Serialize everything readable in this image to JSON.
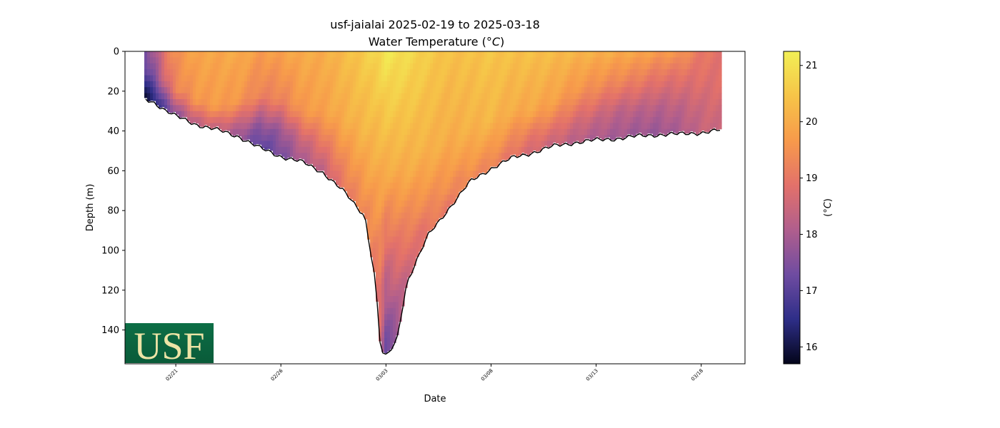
{
  "chart_data": {
    "type": "heatmap",
    "title": "usf-jaialai 2025-02-19 to 2025-03-18",
    "subtitle_prefix": "Water Temperature (",
    "subtitle_unit": "°C",
    "subtitle_suffix": ")",
    "xlabel": "Date",
    "ylabel": "Depth (m)",
    "colorbar_label": "(°C)",
    "colorbar_label_unit": "°C",
    "x_range": [
      "2025-02-18T14:00",
      "2025-03-20T02:00"
    ],
    "ylim": [
      157,
      0
    ],
    "y_inverted": true,
    "color_range": [
      15.7,
      21.25
    ],
    "x_ticks": [
      "2025-02-21",
      "2025-02-26",
      "2025-03-03",
      "2025-03-08",
      "2025-03-13",
      "2025-03-18"
    ],
    "x_tick_labels": [
      "02/21",
      "02/26",
      "03/03",
      "03/08",
      "03/13",
      "03/18"
    ],
    "y_ticks": [
      0,
      20,
      40,
      60,
      80,
      100,
      120,
      140
    ],
    "colorbar_ticks": [
      16,
      17,
      18,
      19,
      20,
      21
    ],
    "colormap": [
      "#03051A",
      "#2E2E88",
      "#6F4CA1",
      "#B05E8D",
      "#E3716A",
      "#F79A4B",
      "#F6C448",
      "#F2EF55"
    ],
    "profiles": [
      {
        "time": "2025-02-19T12:00",
        "max_depth": 23,
        "temps": [
          {
            "depth": 0,
            "temp": 17.3
          },
          {
            "depth": 10,
            "temp": 17.0
          },
          {
            "depth": 18,
            "temp": 16.3
          },
          {
            "depth": 23,
            "temp": 15.9
          }
        ]
      },
      {
        "time": "2025-02-20T00:00",
        "max_depth": 25,
        "temps": [
          {
            "depth": 0,
            "temp": 18.0
          },
          {
            "depth": 12,
            "temp": 17.6
          },
          {
            "depth": 20,
            "temp": 16.8
          },
          {
            "depth": 25,
            "temp": 16.4
          }
        ]
      },
      {
        "time": "2025-02-20T12:00",
        "max_depth": 29,
        "temps": [
          {
            "depth": 0,
            "temp": 19.0
          },
          {
            "depth": 15,
            "temp": 18.6
          },
          {
            "depth": 24,
            "temp": 17.5
          },
          {
            "depth": 29,
            "temp": 17.0
          }
        ]
      },
      {
        "time": "2025-02-21T00:00",
        "max_depth": 32,
        "temps": [
          {
            "depth": 0,
            "temp": 19.5
          },
          {
            "depth": 20,
            "temp": 19.2
          },
          {
            "depth": 28,
            "temp": 18.0
          },
          {
            "depth": 32,
            "temp": 17.6
          }
        ]
      },
      {
        "time": "2025-02-22T00:00",
        "max_depth": 36,
        "temps": [
          {
            "depth": 0,
            "temp": 19.9
          },
          {
            "depth": 25,
            "temp": 19.6
          },
          {
            "depth": 33,
            "temp": 18.6
          },
          {
            "depth": 36,
            "temp": 18.3
          }
        ]
      },
      {
        "time": "2025-02-23T00:00",
        "max_depth": 39,
        "temps": [
          {
            "depth": 0,
            "temp": 19.9
          },
          {
            "depth": 28,
            "temp": 19.7
          },
          {
            "depth": 36,
            "temp": 18.7
          },
          {
            "depth": 39,
            "temp": 18.4
          }
        ]
      },
      {
        "time": "2025-02-24T00:00",
        "max_depth": 42,
        "temps": [
          {
            "depth": 0,
            "temp": 20.0
          },
          {
            "depth": 25,
            "temp": 19.6
          },
          {
            "depth": 38,
            "temp": 18.2
          },
          {
            "depth": 42,
            "temp": 17.8
          }
        ]
      },
      {
        "time": "2025-02-25T00:00",
        "max_depth": 48,
        "temps": [
          {
            "depth": 0,
            "temp": 19.7
          },
          {
            "depth": 22,
            "temp": 19.2
          },
          {
            "depth": 38,
            "temp": 17.6
          },
          {
            "depth": 48,
            "temp": 17.0
          }
        ]
      },
      {
        "time": "2025-02-26T00:00",
        "max_depth": 52,
        "temps": [
          {
            "depth": 0,
            "temp": 19.8
          },
          {
            "depth": 25,
            "temp": 19.2
          },
          {
            "depth": 40,
            "temp": 17.8
          },
          {
            "depth": 52,
            "temp": 17.4
          }
        ]
      },
      {
        "time": "2025-02-27T00:00",
        "max_depth": 55,
        "temps": [
          {
            "depth": 0,
            "temp": 20.0
          },
          {
            "depth": 30,
            "temp": 19.6
          },
          {
            "depth": 45,
            "temp": 18.4
          },
          {
            "depth": 55,
            "temp": 18.0
          }
        ]
      },
      {
        "time": "2025-02-28T00:00",
        "max_depth": 60,
        "temps": [
          {
            "depth": 0,
            "temp": 20.0
          },
          {
            "depth": 30,
            "temp": 19.8
          },
          {
            "depth": 50,
            "temp": 18.8
          },
          {
            "depth": 60,
            "temp": 18.3
          }
        ]
      },
      {
        "time": "2025-03-01T00:00",
        "max_depth": 70,
        "temps": [
          {
            "depth": 0,
            "temp": 20.3
          },
          {
            "depth": 35,
            "temp": 20.0
          },
          {
            "depth": 55,
            "temp": 19.4
          },
          {
            "depth": 70,
            "temp": 19.0
          }
        ]
      },
      {
        "time": "2025-03-02T00:00",
        "max_depth": 82,
        "temps": [
          {
            "depth": 0,
            "temp": 20.6
          },
          {
            "depth": 40,
            "temp": 20.2
          },
          {
            "depth": 65,
            "temp": 19.7
          },
          {
            "depth": 82,
            "temp": 19.3
          }
        ]
      },
      {
        "time": "2025-03-02T12:00",
        "max_depth": 115,
        "temps": [
          {
            "depth": 0,
            "temp": 20.8
          },
          {
            "depth": 50,
            "temp": 20.1
          },
          {
            "depth": 90,
            "temp": 19.4
          },
          {
            "depth": 115,
            "temp": 18.8
          }
        ]
      },
      {
        "time": "2025-03-02T18:00",
        "max_depth": 150,
        "temps": [
          {
            "depth": 0,
            "temp": 20.9
          },
          {
            "depth": 60,
            "temp": 20.0
          },
          {
            "depth": 110,
            "temp": 19.1
          },
          {
            "depth": 150,
            "temp": 18.5
          }
        ]
      },
      {
        "time": "2025-03-03T00:00",
        "max_depth": 153,
        "temps": [
          {
            "depth": 0,
            "temp": 21.1
          },
          {
            "depth": 60,
            "temp": 20.0
          },
          {
            "depth": 110,
            "temp": 18.4
          },
          {
            "depth": 153,
            "temp": 17.1
          }
        ]
      },
      {
        "time": "2025-03-03T12:00",
        "max_depth": 145,
        "temps": [
          {
            "depth": 0,
            "temp": 21.0
          },
          {
            "depth": 60,
            "temp": 20.0
          },
          {
            "depth": 110,
            "temp": 18.6
          },
          {
            "depth": 145,
            "temp": 17.6
          }
        ]
      },
      {
        "time": "2025-03-04T00:00",
        "max_depth": 115,
        "temps": [
          {
            "depth": 0,
            "temp": 20.9
          },
          {
            "depth": 60,
            "temp": 20.0
          },
          {
            "depth": 95,
            "temp": 19.0
          },
          {
            "depth": 115,
            "temp": 18.4
          }
        ]
      },
      {
        "time": "2025-03-05T00:00",
        "max_depth": 92,
        "temps": [
          {
            "depth": 0,
            "temp": 20.6
          },
          {
            "depth": 50,
            "temp": 20.1
          },
          {
            "depth": 80,
            "temp": 19.3
          },
          {
            "depth": 92,
            "temp": 18.8
          }
        ]
      },
      {
        "time": "2025-03-06T00:00",
        "max_depth": 78,
        "temps": [
          {
            "depth": 0,
            "temp": 20.4
          },
          {
            "depth": 45,
            "temp": 20.0
          },
          {
            "depth": 70,
            "temp": 19.4
          },
          {
            "depth": 78,
            "temp": 19.0
          }
        ]
      },
      {
        "time": "2025-03-07T00:00",
        "max_depth": 65,
        "temps": [
          {
            "depth": 0,
            "temp": 20.4
          },
          {
            "depth": 40,
            "temp": 20.1
          },
          {
            "depth": 58,
            "temp": 19.6
          },
          {
            "depth": 65,
            "temp": 19.2
          }
        ]
      },
      {
        "time": "2025-03-08T00:00",
        "max_depth": 58,
        "temps": [
          {
            "depth": 0,
            "temp": 20.5
          },
          {
            "depth": 35,
            "temp": 20.2
          },
          {
            "depth": 50,
            "temp": 19.6
          },
          {
            "depth": 58,
            "temp": 19.2
          }
        ]
      },
      {
        "time": "2025-03-09T00:00",
        "max_depth": 53,
        "temps": [
          {
            "depth": 0,
            "temp": 20.4
          },
          {
            "depth": 30,
            "temp": 20.0
          },
          {
            "depth": 45,
            "temp": 19.3
          },
          {
            "depth": 53,
            "temp": 18.9
          }
        ]
      },
      {
        "time": "2025-03-10T00:00",
        "max_depth": 50,
        "temps": [
          {
            "depth": 0,
            "temp": 20.4
          },
          {
            "depth": 30,
            "temp": 19.9
          },
          {
            "depth": 42,
            "temp": 19.0
          },
          {
            "depth": 50,
            "temp": 18.6
          }
        ]
      },
      {
        "time": "2025-03-11T00:00",
        "max_depth": 47,
        "temps": [
          {
            "depth": 0,
            "temp": 20.3
          },
          {
            "depth": 25,
            "temp": 19.8
          },
          {
            "depth": 40,
            "temp": 18.8
          },
          {
            "depth": 47,
            "temp": 18.4
          }
        ]
      },
      {
        "time": "2025-03-12T00:00",
        "max_depth": 45,
        "temps": [
          {
            "depth": 0,
            "temp": 20.2
          },
          {
            "depth": 20,
            "temp": 19.6
          },
          {
            "depth": 36,
            "temp": 18.6
          },
          {
            "depth": 45,
            "temp": 18.2
          }
        ]
      },
      {
        "time": "2025-03-13T00:00",
        "max_depth": 44,
        "temps": [
          {
            "depth": 0,
            "temp": 20.1
          },
          {
            "depth": 18,
            "temp": 19.4
          },
          {
            "depth": 34,
            "temp": 18.4
          },
          {
            "depth": 44,
            "temp": 18.0
          }
        ]
      },
      {
        "time": "2025-03-14T00:00",
        "max_depth": 43,
        "temps": [
          {
            "depth": 0,
            "temp": 20.0
          },
          {
            "depth": 15,
            "temp": 19.3
          },
          {
            "depth": 30,
            "temp": 18.3
          },
          {
            "depth": 43,
            "temp": 17.9
          }
        ]
      },
      {
        "time": "2025-03-15T00:00",
        "max_depth": 42,
        "temps": [
          {
            "depth": 0,
            "temp": 19.9
          },
          {
            "depth": 15,
            "temp": 19.1
          },
          {
            "depth": 30,
            "temp": 18.2
          },
          {
            "depth": 42,
            "temp": 17.8
          }
        ]
      },
      {
        "time": "2025-03-16T00:00",
        "max_depth": 41,
        "temps": [
          {
            "depth": 0,
            "temp": 19.7
          },
          {
            "depth": 12,
            "temp": 19.0
          },
          {
            "depth": 28,
            "temp": 18.2
          },
          {
            "depth": 41,
            "temp": 17.8
          }
        ]
      },
      {
        "time": "2025-03-17T00:00",
        "max_depth": 41,
        "temps": [
          {
            "depth": 0,
            "temp": 19.6
          },
          {
            "depth": 12,
            "temp": 18.9
          },
          {
            "depth": 28,
            "temp": 18.3
          },
          {
            "depth": 41,
            "temp": 18.0
          }
        ]
      },
      {
        "time": "2025-03-18T00:00",
        "max_depth": 40,
        "temps": [
          {
            "depth": 0,
            "temp": 19.0
          },
          {
            "depth": 15,
            "temp": 18.8
          },
          {
            "depth": 30,
            "temp": 18.5
          },
          {
            "depth": 40,
            "temp": 18.4
          }
        ]
      },
      {
        "time": "2025-03-18T22:00",
        "max_depth": 39,
        "temps": [
          {
            "depth": 0,
            "temp": 18.9
          },
          {
            "depth": 15,
            "temp": 18.8
          },
          {
            "depth": 30,
            "temp": 18.6
          },
          {
            "depth": 39,
            "temp": 18.5
          }
        ]
      }
    ]
  },
  "logo": {
    "text": "USF",
    "bg_top": "#0C6E46",
    "bg_bottom": "#0A5B39",
    "text_color": "#EDE4A6"
  }
}
